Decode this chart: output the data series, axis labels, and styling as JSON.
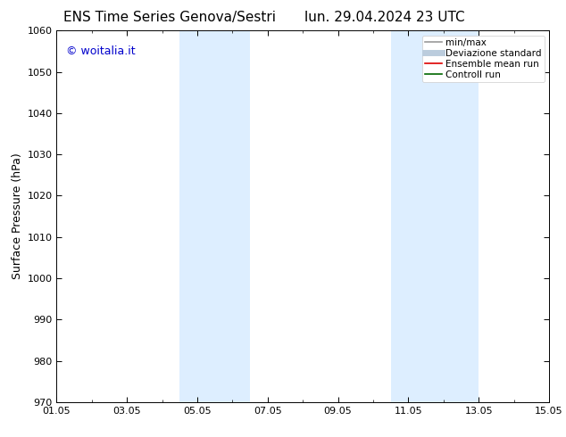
{
  "title_left": "ENS Time Series Genova/Sestri",
  "title_right": "lun. 29.04.2024 23 UTC",
  "ylabel": "Surface Pressure (hPa)",
  "ylim": [
    970,
    1060
  ],
  "yticks": [
    970,
    980,
    990,
    1000,
    1010,
    1020,
    1030,
    1040,
    1050,
    1060
  ],
  "xtick_labels": [
    "01.05",
    "03.05",
    "05.05",
    "07.05",
    "09.05",
    "11.05",
    "13.05",
    "15.05"
  ],
  "xtick_positions": [
    0,
    2,
    4,
    6,
    8,
    10,
    12,
    14
  ],
  "xlim": [
    0,
    14
  ],
  "shaded_regions": [
    {
      "x_start": 3.5,
      "x_end": 5.5
    },
    {
      "x_start": 9.5,
      "x_end": 12.0
    }
  ],
  "shaded_color": "#ddeeff",
  "background_color": "#ffffff",
  "watermark": "© woitalia.it",
  "watermark_color": "#0000cc",
  "legend_entries": [
    {
      "label": "min/max",
      "color": "#999999",
      "lw": 1.2
    },
    {
      "label": "Deviazione standard",
      "color": "#bbccdd",
      "lw": 5
    },
    {
      "label": "Ensemble mean run",
      "color": "#dd0000",
      "lw": 1.2
    },
    {
      "label": "Controll run",
      "color": "#006600",
      "lw": 1.2
    }
  ],
  "title_fontsize": 11,
  "axis_tick_fontsize": 8,
  "ylabel_fontsize": 9,
  "watermark_fontsize": 9,
  "legend_fontsize": 7.5
}
